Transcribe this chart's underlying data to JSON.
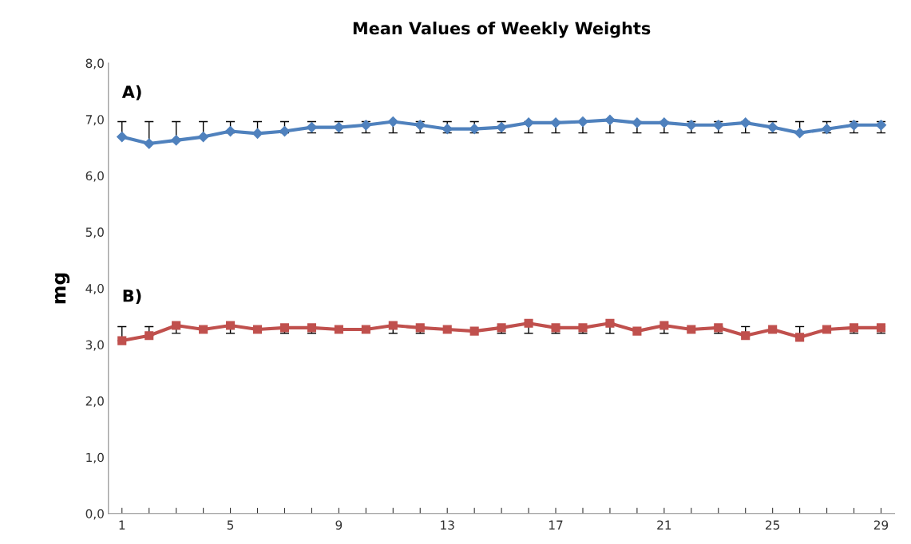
{
  "chart_data": {
    "type": "line",
    "title": "Mean Values of Weekly Weights",
    "ylabel": "mg",
    "x": [
      1,
      2,
      3,
      4,
      5,
      6,
      7,
      8,
      9,
      10,
      11,
      12,
      13,
      14,
      15,
      16,
      17,
      18,
      19,
      20,
      21,
      22,
      23,
      24,
      25,
      26,
      27,
      28,
      29
    ],
    "xlim": [
      0.5,
      29.5
    ],
    "xticks": [
      1,
      {
        "value": 2,
        "label": null
      },
      {
        "value": 3,
        "label": null
      },
      {
        "value": 4,
        "label": null
      },
      5,
      {
        "value": 6,
        "label": null
      },
      {
        "value": 7,
        "label": null
      },
      {
        "value": 8,
        "label": null
      },
      9,
      {
        "value": 10,
        "label": null
      },
      {
        "value": 11,
        "label": null
      },
      {
        "value": 12,
        "label": null
      },
      13,
      {
        "value": 14,
        "label": null
      },
      {
        "value": 15,
        "label": null
      },
      {
        "value": 16,
        "label": null
      },
      17,
      {
        "value": 18,
        "label": null
      },
      {
        "value": 19,
        "label": null
      },
      {
        "value": 20,
        "label": null
      },
      21,
      {
        "value": 22,
        "label": null
      },
      {
        "value": 23,
        "label": null
      },
      {
        "value": 24,
        "label": null
      },
      25,
      {
        "value": 26,
        "label": null
      },
      {
        "value": 27,
        "label": null
      },
      {
        "value": 28,
        "label": null
      },
      29
    ],
    "ylim": [
      0,
      8
    ],
    "yticks": [
      {
        "value": 0,
        "label": "0,0"
      },
      {
        "value": 1,
        "label": "1,0"
      },
      {
        "value": 2,
        "label": "2,0"
      },
      {
        "value": 3,
        "label": "3,0"
      },
      {
        "value": 4,
        "label": "4,0"
      },
      {
        "value": 5,
        "label": "5,0"
      },
      {
        "value": 6,
        "label": "6,0"
      },
      {
        "value": 7,
        "label": "7,0"
      },
      {
        "value": 8,
        "label": "8,0"
      }
    ],
    "grid": false,
    "legend": false,
    "line_style": "solid",
    "series": [
      {
        "name": "A)",
        "color": "#4f81bd",
        "marker": "diamond",
        "values": [
          6.69,
          6.57,
          6.63,
          6.69,
          6.79,
          6.75,
          6.79,
          6.86,
          6.86,
          6.9,
          6.96,
          6.9,
          6.83,
          6.83,
          6.86,
          6.94,
          6.94,
          6.96,
          6.99,
          6.94,
          6.94,
          6.9,
          6.9,
          6.94,
          6.86,
          6.76,
          6.83,
          6.9,
          6.9
        ],
        "errors": [
          [
            6.69,
            6.96
          ],
          [
            6.57,
            6.96
          ],
          [
            6.63,
            6.96
          ],
          [
            6.69,
            6.96
          ],
          [
            6.76,
            6.96
          ],
          [
            6.75,
            6.96
          ],
          [
            6.76,
            6.96
          ],
          [
            6.76,
            6.96
          ],
          [
            6.76,
            6.96
          ],
          [
            6.76,
            6.96
          ],
          [
            6.76,
            6.96
          ],
          [
            6.76,
            6.96
          ],
          [
            6.76,
            6.96
          ],
          [
            6.76,
            6.96
          ],
          [
            6.76,
            6.96
          ],
          [
            6.76,
            6.96
          ],
          [
            6.76,
            6.96
          ],
          [
            6.76,
            6.96
          ],
          [
            6.76,
            6.99
          ],
          [
            6.76,
            6.96
          ],
          [
            6.76,
            6.96
          ],
          [
            6.76,
            6.96
          ],
          [
            6.76,
            6.96
          ],
          [
            6.76,
            6.96
          ],
          [
            6.76,
            6.96
          ],
          [
            6.76,
            6.96
          ],
          [
            6.76,
            6.96
          ],
          [
            6.76,
            6.96
          ],
          [
            6.76,
            6.96
          ]
        ]
      },
      {
        "name": "B)",
        "color": "#c0504d",
        "marker": "square",
        "values": [
          3.07,
          3.16,
          3.34,
          3.27,
          3.34,
          3.27,
          3.3,
          3.3,
          3.27,
          3.27,
          3.34,
          3.3,
          3.27,
          3.24,
          3.3,
          3.38,
          3.3,
          3.3,
          3.38,
          3.24,
          3.34,
          3.27,
          3.3,
          3.16,
          3.27,
          3.13,
          3.27,
          3.3,
          3.3
        ],
        "errors": [
          [
            3.07,
            3.32
          ],
          [
            3.16,
            3.32
          ],
          [
            3.2,
            3.34
          ],
          null,
          [
            3.2,
            3.34
          ],
          null,
          [
            3.2,
            3.32
          ],
          [
            3.2,
            3.32
          ],
          null,
          null,
          [
            3.2,
            3.34
          ],
          [
            3.2,
            3.32
          ],
          null,
          null,
          [
            3.2,
            3.32
          ],
          [
            3.2,
            3.38
          ],
          [
            3.2,
            3.32
          ],
          [
            3.2,
            3.32
          ],
          [
            3.2,
            3.38
          ],
          null,
          [
            3.2,
            3.34
          ],
          null,
          [
            3.2,
            3.32
          ],
          [
            3.16,
            3.32
          ],
          null,
          [
            3.13,
            3.32
          ],
          null,
          [
            3.2,
            3.32
          ],
          [
            3.2,
            3.32
          ]
        ]
      }
    ]
  }
}
